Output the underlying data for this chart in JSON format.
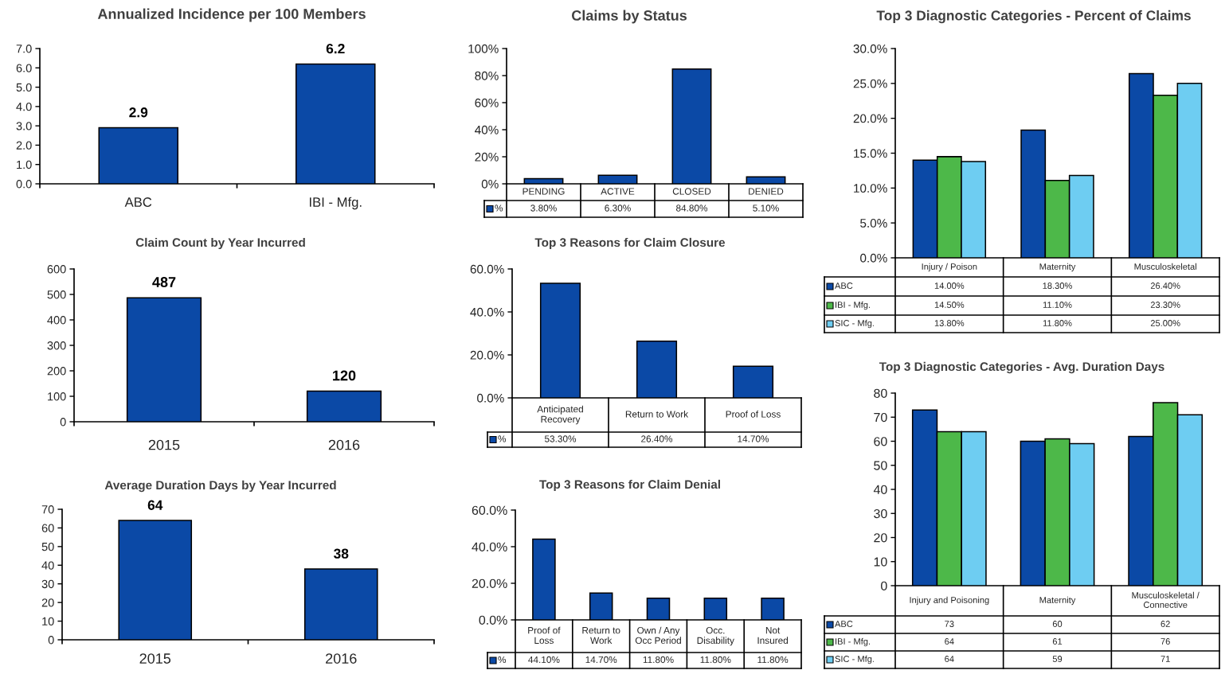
{
  "chart_data": [
    {
      "type": "bar",
      "title": "Annualized Incidence per 100 Members",
      "categories": [
        "ABC",
        "IBI - Mfg."
      ],
      "values": [
        2.9,
        6.2
      ],
      "color": "#0b49a6",
      "ylim": [
        0,
        7
      ],
      "yticks": [
        {
          "value": 0,
          "label": "0.0"
        },
        {
          "value": 1,
          "label": "1.0"
        },
        {
          "value": 2,
          "label": "2.0"
        },
        {
          "value": 3,
          "label": "3.0"
        },
        {
          "value": 4,
          "label": "4.0"
        },
        {
          "value": 5,
          "label": "5.0"
        },
        {
          "value": 6,
          "label": "6.0"
        },
        {
          "value": 7,
          "label": "7.0"
        }
      ],
      "data_labels": true
    },
    {
      "type": "bar",
      "title": "Claim Count by Year Incurred",
      "categories": [
        "2015",
        "2016"
      ],
      "values": [
        487,
        120
      ],
      "color": "#0b49a6",
      "ylim": [
        0,
        600
      ],
      "yticks": [
        0,
        100,
        200,
        300,
        400,
        500,
        600
      ],
      "data_labels": true
    },
    {
      "type": "bar",
      "title": "Average Duration Days by Year Incurred",
      "categories": [
        "2015",
        "2016"
      ],
      "values": [
        64,
        38
      ],
      "color": "#0b49a6",
      "ylim": [
        0,
        70
      ],
      "yticks": [
        0,
        10,
        20,
        30,
        40,
        50,
        60,
        70
      ],
      "data_labels": true
    },
    {
      "type": "bar",
      "title": "Claims by Status",
      "categories": [
        "PENDING",
        "ACTIVE",
        "CLOSED",
        "DENIED"
      ],
      "series": [
        {
          "name": "%",
          "color": "#0b49a6",
          "values": [
            3.8,
            6.3,
            84.8,
            5.1
          ],
          "value_labels": [
            "3.80%",
            "6.30%",
            "84.80%",
            "5.10%"
          ]
        }
      ],
      "ylim": [
        0,
        100
      ],
      "yticks": [
        {
          "value": 0,
          "label": "0%"
        },
        {
          "value": 20,
          "label": "20%"
        },
        {
          "value": 40,
          "label": "40%"
        },
        {
          "value": 60,
          "label": "60%"
        },
        {
          "value": 80,
          "label": "80%"
        },
        {
          "value": 100,
          "label": "100%"
        }
      ],
      "legend": "bottom left"
    },
    {
      "type": "bar",
      "title": "Top 3 Reasons for Claim Closure",
      "categories": [
        "Anticipated\nRecovery",
        "Return to Work",
        "Proof of Loss"
      ],
      "series": [
        {
          "name": "%",
          "color": "#0b49a6",
          "values": [
            53.3,
            26.4,
            14.7
          ],
          "value_labels": [
            "53.30%",
            "26.40%",
            "14.70%"
          ]
        }
      ],
      "ylim": [
        0,
        60
      ],
      "yticks": [
        {
          "value": 0,
          "label": "0.0%"
        },
        {
          "value": 20,
          "label": "20.0%"
        },
        {
          "value": 40,
          "label": "40.0%"
        },
        {
          "value": 60,
          "label": "60.0%"
        }
      ],
      "legend": "bottom left"
    },
    {
      "type": "bar",
      "title": "Top 3 Reasons for Claim Denial",
      "categories": [
        "Proof of\nLoss",
        "Return to\nWork",
        "Own / Any\nOcc Period",
        "Occ.\nDisability",
        "Not\nInsured"
      ],
      "series": [
        {
          "name": "%",
          "color": "#0b49a6",
          "values": [
            44.1,
            14.7,
            11.8,
            11.8,
            11.8
          ],
          "value_labels": [
            "44.10%",
            "14.70%",
            "11.80%",
            "11.80%",
            "11.80%"
          ]
        }
      ],
      "ylim": [
        0,
        60
      ],
      "yticks": [
        {
          "value": 0,
          "label": "0.0%"
        },
        {
          "value": 20,
          "label": "20.0%"
        },
        {
          "value": 40,
          "label": "40.0%"
        },
        {
          "value": 60,
          "label": "60.0%"
        }
      ],
      "legend": "bottom left"
    },
    {
      "type": "bar",
      "title": "Top 3 Diagnostic Categories - Percent of Claims",
      "categories": [
        "Injury / Poison",
        "Maternity",
        "Musculoskeletal"
      ],
      "series": [
        {
          "name": "ABC",
          "color": "#0b49a6",
          "values": [
            14.0,
            18.3,
            26.4
          ],
          "value_labels": [
            "14.00%",
            "18.30%",
            "26.40%"
          ]
        },
        {
          "name": "IBI - Mfg.",
          "color": "#4db849",
          "values": [
            14.5,
            11.1,
            23.3
          ],
          "value_labels": [
            "14.50%",
            "11.10%",
            "23.30%"
          ]
        },
        {
          "name": "SIC - Mfg.",
          "color": "#6ecdf2",
          "values": [
            13.8,
            11.8,
            25.0
          ],
          "value_labels": [
            "13.80%",
            "11.80%",
            "25.00%"
          ]
        }
      ],
      "ylim": [
        0,
        30
      ],
      "yticks": [
        {
          "value": 0,
          "label": "0.0%"
        },
        {
          "value": 5,
          "label": "5.0%"
        },
        {
          "value": 10,
          "label": "10.0%"
        },
        {
          "value": 15,
          "label": "15.0%"
        },
        {
          "value": 20,
          "label": "20.0%"
        },
        {
          "value": 25,
          "label": "25.0%"
        },
        {
          "value": 30,
          "label": "30.0%"
        }
      ],
      "legend": "bottom left"
    },
    {
      "type": "bar",
      "title": "Top 3 Diagnostic Categories - Avg. Duration Days",
      "categories": [
        "Injury and Poisoning",
        "Maternity",
        "Musculoskeletal /\nConnective"
      ],
      "series": [
        {
          "name": "ABC",
          "color": "#0b49a6",
          "values": [
            73,
            60,
            62
          ]
        },
        {
          "name": "IBI - Mfg.",
          "color": "#4db849",
          "values": [
            64,
            61,
            76
          ]
        },
        {
          "name": "SIC - Mfg.",
          "color": "#6ecdf2",
          "values": [
            64,
            59,
            71
          ]
        }
      ],
      "ylim": [
        0,
        80
      ],
      "yticks": [
        0,
        10,
        20,
        30,
        40,
        50,
        60,
        70,
        80
      ],
      "data_labels": true,
      "legend": "bottom left"
    }
  ]
}
